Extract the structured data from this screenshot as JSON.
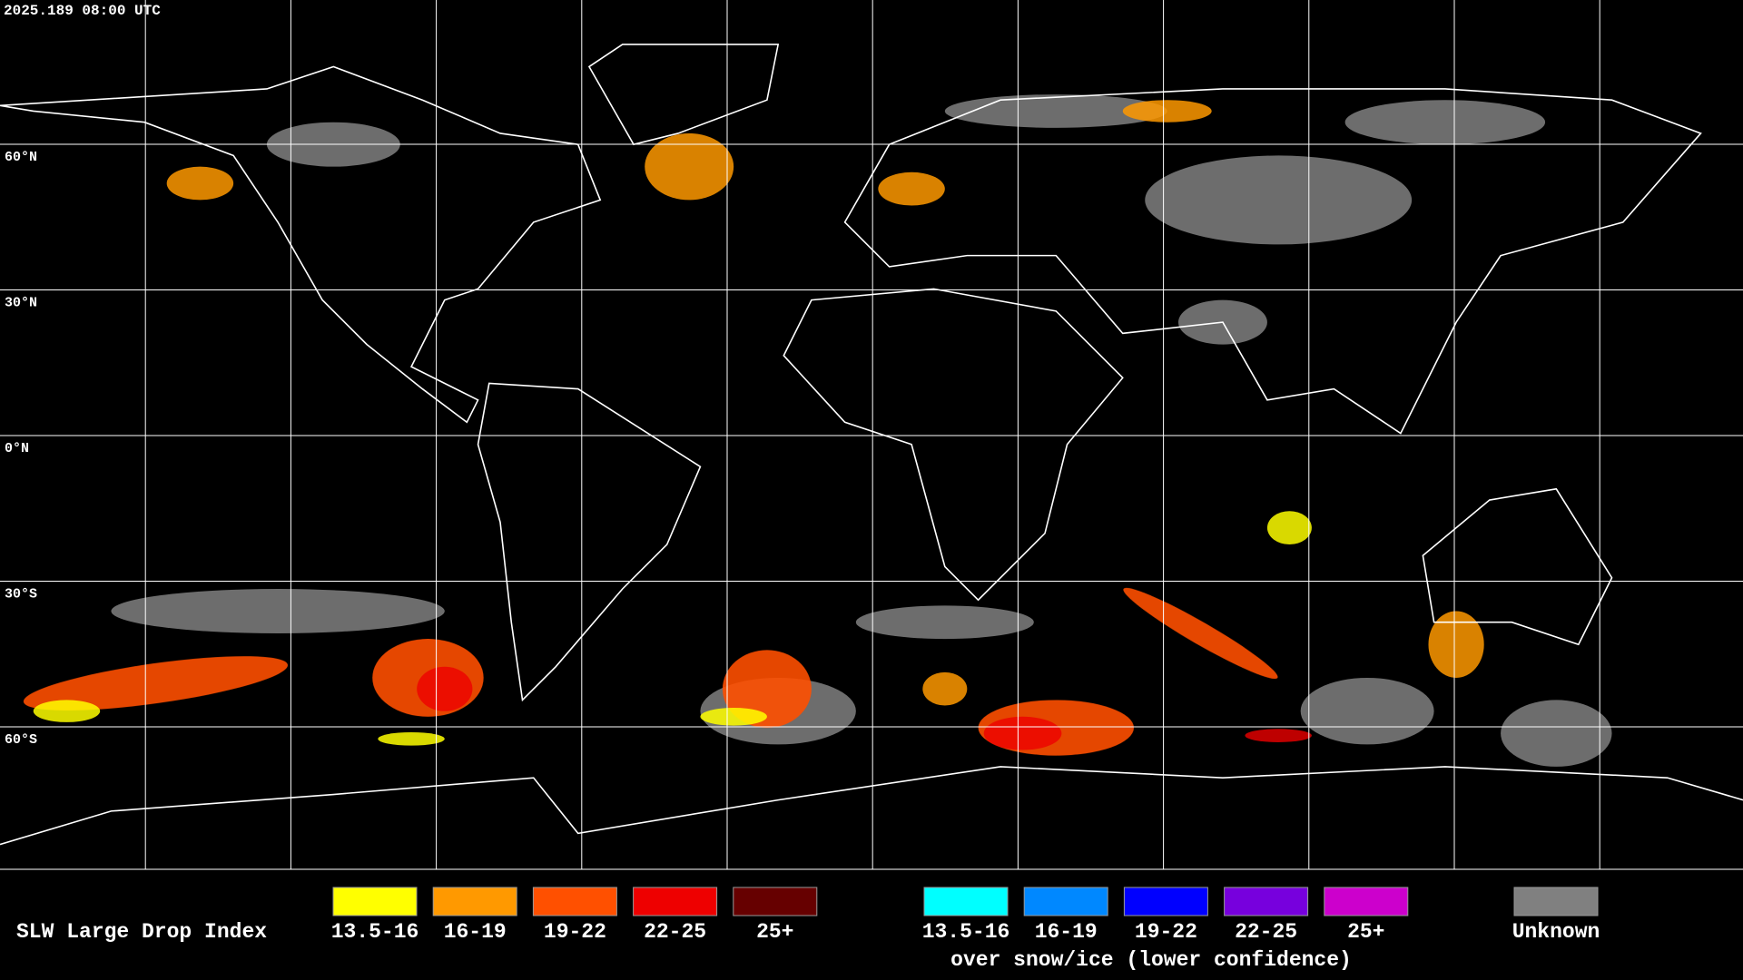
{
  "header": {
    "timestamp": "2025.189 08:00 UTC"
  },
  "map": {
    "lat_labels": [
      "60°N",
      "30°N",
      "0°N",
      "30°S",
      "60°S"
    ]
  },
  "legend": {
    "title": "SLW Large Drop Index",
    "groups": [
      {
        "items": [
          {
            "label": "13.5-16",
            "color": "#ffff00"
          },
          {
            "label": "16-19",
            "color": "#ff9900"
          },
          {
            "label": "19-22",
            "color": "#ff5000"
          },
          {
            "label": "22-25",
            "color": "#ee0000"
          },
          {
            "label": "25+",
            "color": "#660000"
          }
        ]
      },
      {
        "items": [
          {
            "label": "13.5-16",
            "color": "#00ffff"
          },
          {
            "label": "16-19",
            "color": "#0088ff"
          },
          {
            "label": "19-22",
            "color": "#0000ff"
          },
          {
            "label": "22-25",
            "color": "#7700dd"
          },
          {
            "label": "25+",
            "color": "#cc00cc"
          }
        ],
        "caption": "over snow/ice (lower confidence)"
      },
      {
        "items": [
          {
            "label": "Unknown",
            "color": "#808080"
          }
        ]
      }
    ]
  }
}
